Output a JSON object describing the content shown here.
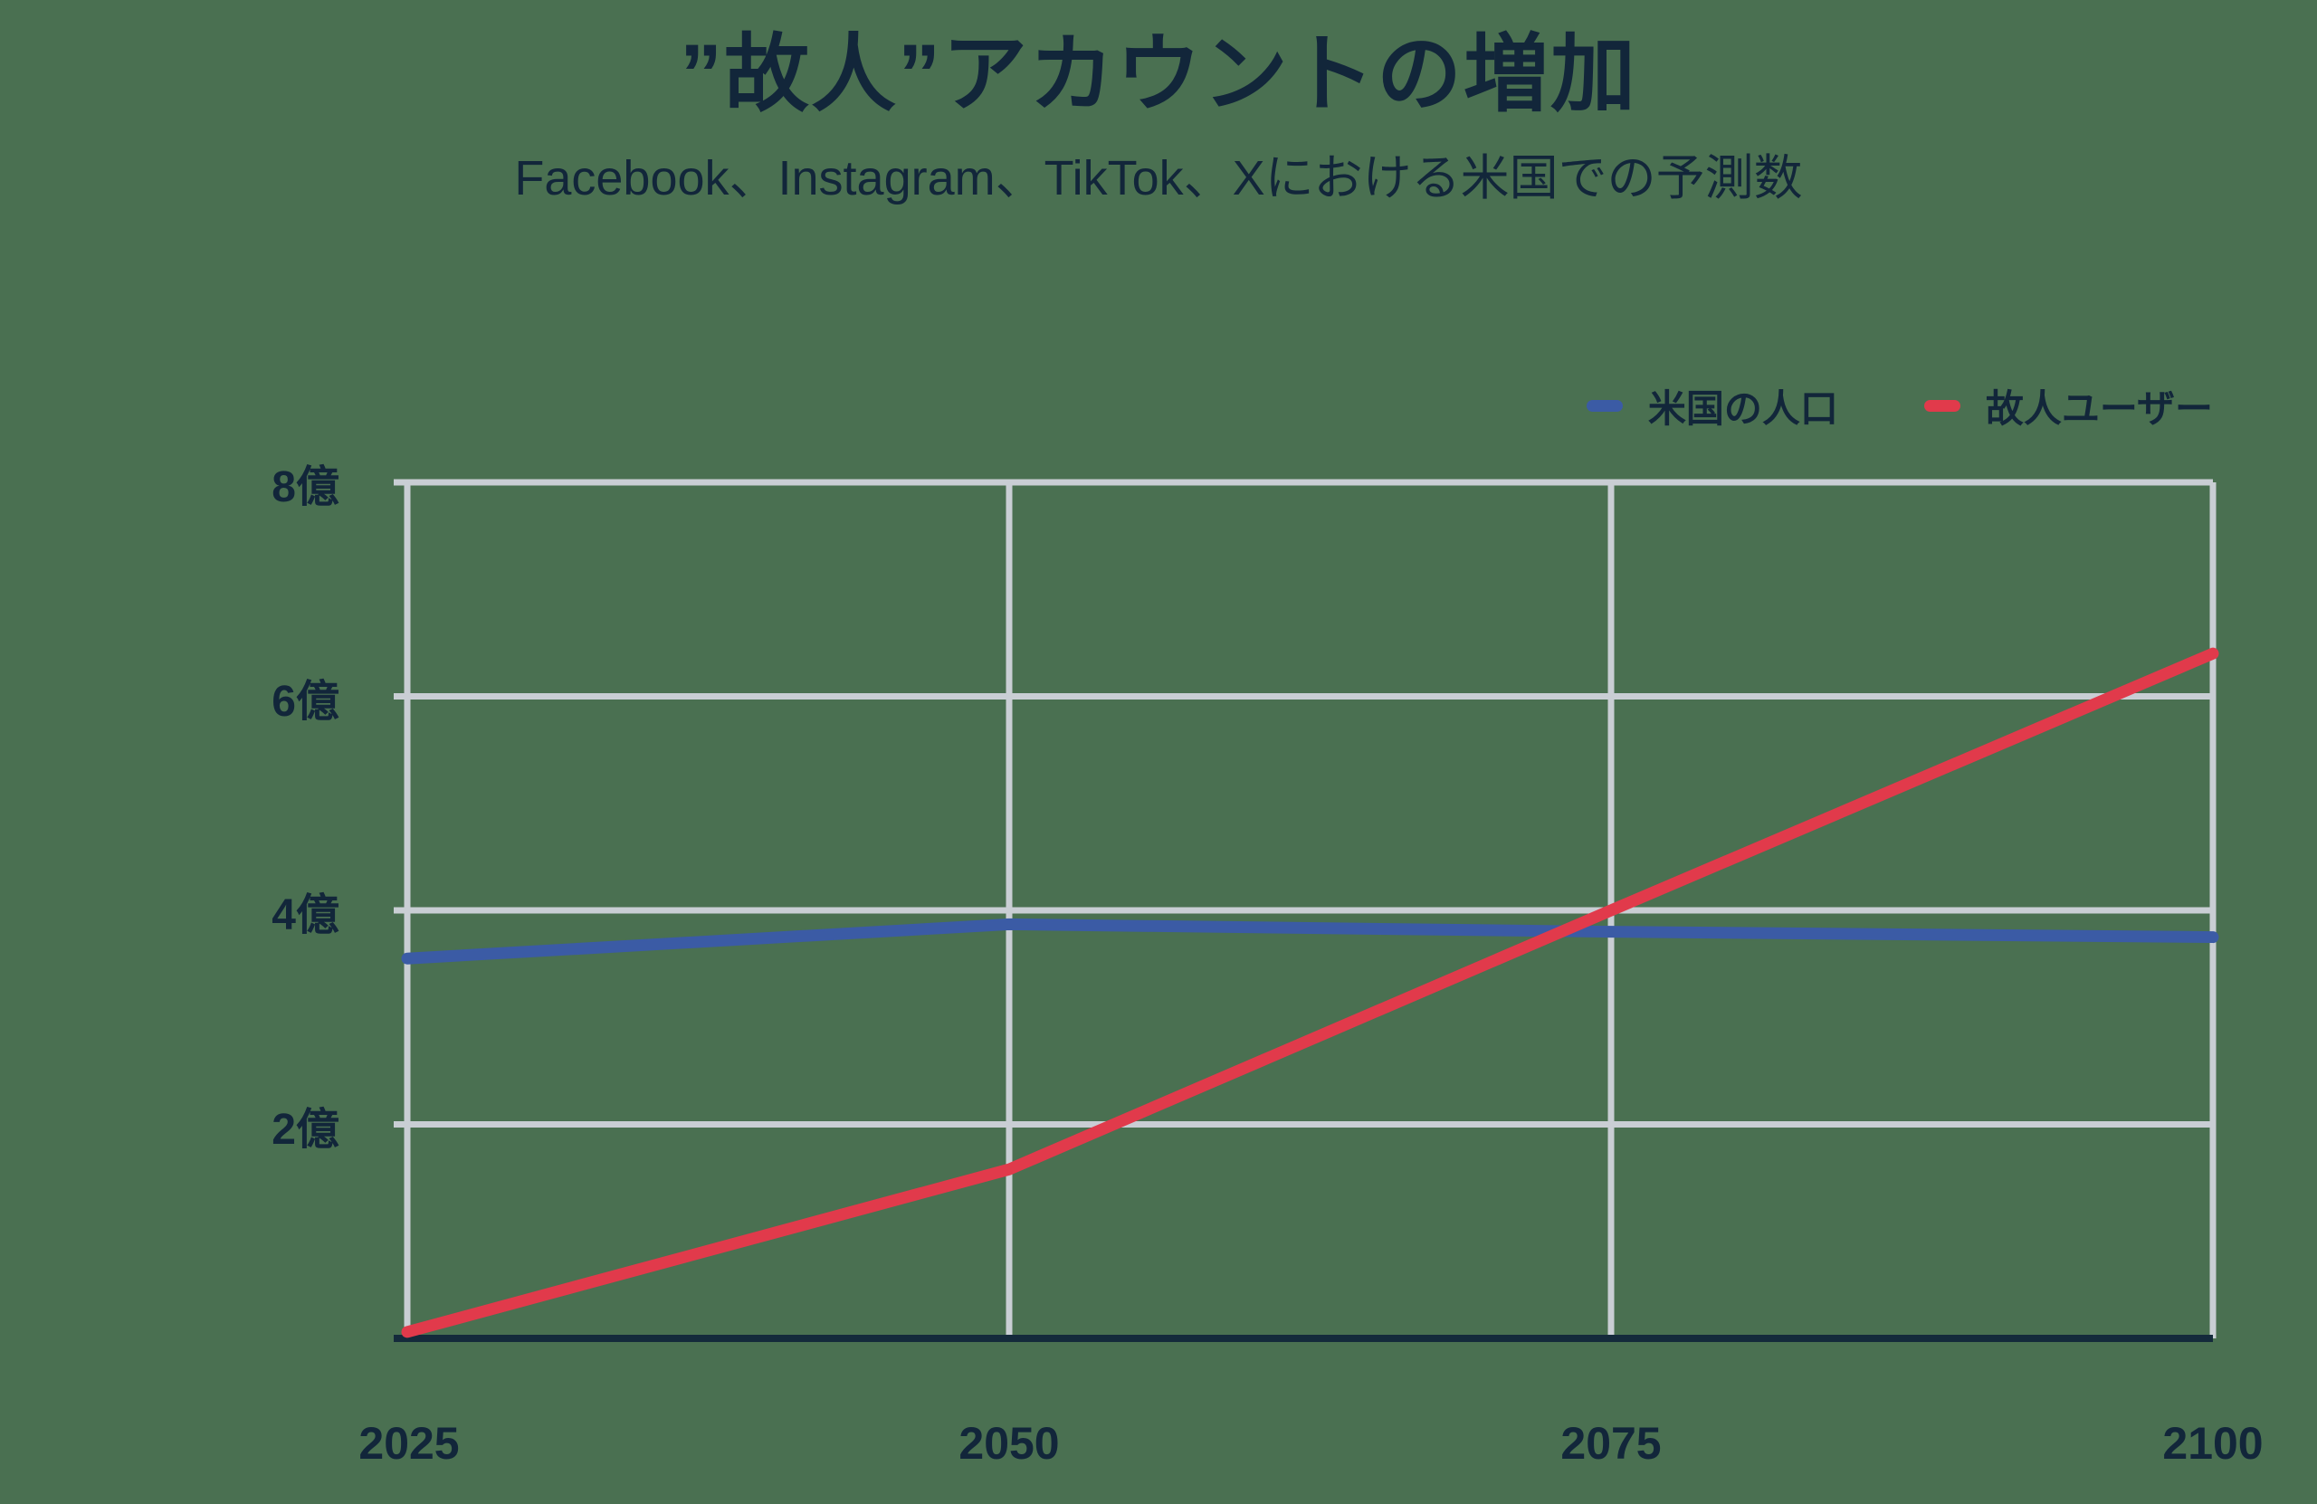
{
  "header": {
    "title": "”故人”アカウントの増加",
    "subtitle": "Facebook、Instagram、TikTok、Xにおける米国での予測数"
  },
  "legend": {
    "items": [
      {
        "label": "米国の人口",
        "color": "#3B5BA5"
      },
      {
        "label": "故人ユーザー",
        "color": "#E13A4B"
      }
    ]
  },
  "colors": {
    "background": "#4A7051",
    "text": "#12263A",
    "grid": "#C9CED4",
    "axis": "#142A3B",
    "us_population_line": "#3B5BA5",
    "deceased_users_line": "#E13A4B"
  },
  "chart_data": {
    "type": "line",
    "x": [
      2025,
      2050,
      2075,
      2100
    ],
    "x_tick_labels": [
      "2025",
      "2050",
      "2075",
      "2100"
    ],
    "y_ticks": [
      2,
      4,
      6,
      8
    ],
    "y_tick_labels": [
      "2億",
      "4億",
      "6億",
      "8億"
    ],
    "xlim": [
      2025,
      2100
    ],
    "ylim": [
      0,
      8
    ],
    "unit": "億 (hundreds of millions)",
    "grid": true,
    "legend_position": "top-right",
    "title": "”故人”アカウントの増加",
    "subtitle": "Facebook、Instagram、TikTok、Xにおける米国での予測数",
    "series": [
      {
        "name": "米国の人口",
        "color": "#3B5BA5",
        "values": [
          3.55,
          3.87,
          3.8,
          3.75
        ]
      },
      {
        "name": "故人ユーザー",
        "color": "#E13A4B",
        "values": [
          0.06,
          1.58,
          4.0,
          6.4
        ]
      }
    ]
  }
}
